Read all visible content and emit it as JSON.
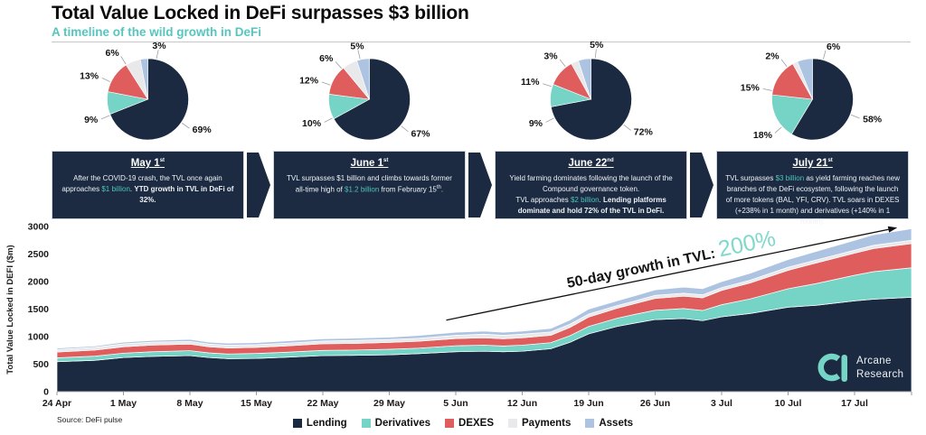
{
  "header": {
    "title": "Total Value Locked in DeFi surpasses $3 billion",
    "subtitle": "A timeline of the wild growth in DeFi"
  },
  "colors": {
    "lending": "#1b2a41",
    "derivatives": "#76d4c7",
    "dexes": "#e05d5e",
    "payments": "#e9e9eb",
    "assets": "#adc3e2",
    "accent_teal": "#57c5bd",
    "annotation_teal": "#7fd8cc"
  },
  "legend": {
    "items": [
      {
        "label": "Lending",
        "color": "#1b2a41"
      },
      {
        "label": "Derivatives",
        "color": "#76d4c7"
      },
      {
        "label": "DEXES",
        "color": "#e05d5e"
      },
      {
        "label": "Payments",
        "color": "#e9e9eb"
      },
      {
        "label": "Assets",
        "color": "#adc3e2"
      }
    ]
  },
  "timeline": [
    {
      "date": "May 1",
      "date_suffix": "st",
      "segments": [
        {
          "t": "After the COVID-19 crash, the TVL once again approaches ",
          "s": "n"
        },
        {
          "t": "$1 billion",
          "s": "teal"
        },
        {
          "t": ". ",
          "s": "n"
        },
        {
          "t": "YTD growth in TVL in DeFi of 32%.",
          "s": "b"
        }
      ]
    },
    {
      "date": "June 1",
      "date_suffix": "st",
      "segments": [
        {
          "t": "TVL surpasses $1 billion and climbs towards former all-time high of ",
          "s": "n"
        },
        {
          "t": "$1.2 billion",
          "s": "teal"
        },
        {
          "t": " from February 15",
          "s": "n"
        },
        {
          "t": "th",
          "s": "sup"
        },
        {
          "t": ".",
          "s": "n"
        }
      ]
    },
    {
      "date": "June 22",
      "date_suffix": "nd",
      "segments": [
        {
          "t": "Yield farming dominates following the launch of the Compound governance token.",
          "s": "n"
        },
        {
          "t": "",
          "s": "br"
        },
        {
          "t": "TVL approaches ",
          "s": "n"
        },
        {
          "t": "$2 billion",
          "s": "teal"
        },
        {
          "t": ".  ",
          "s": "n"
        },
        {
          "t": "Lending platforms dominate and hold 72% of the TVL in DeFi.",
          "s": "b"
        }
      ]
    },
    {
      "date": "July 21",
      "date_suffix": "st",
      "segments": [
        {
          "t": "TVL surpasses ",
          "s": "n"
        },
        {
          "t": "$3 billion",
          "s": "teal"
        },
        {
          "t": " as yield farming reaches new branches of the DeFi ecosystem, following the launch of more tokens (BAL, YFI, CRV). TVL soars in DEXES (+238% in 1 month) and derivatives (+140% in 1 month).",
          "s": "n"
        }
      ]
    }
  ],
  "chart_data": [
    {
      "type": "pie",
      "title": "May 1st",
      "labels": [
        "Lending",
        "Derivatives",
        "DEXES",
        "Payments",
        "Assets"
      ],
      "values": [
        69,
        9,
        13,
        6,
        3
      ],
      "colors": [
        "#1b2a41",
        "#76d4c7",
        "#e05d5e",
        "#e9e9eb",
        "#adc3e2"
      ],
      "label_angles": [
        125,
        247,
        295,
        328,
        12
      ]
    },
    {
      "type": "pie",
      "title": "June 1st",
      "labels": [
        "Lending",
        "Derivatives",
        "DEXES",
        "Payments",
        "Assets"
      ],
      "values": [
        67,
        10,
        12,
        6,
        5
      ],
      "colors": [
        "#1b2a41",
        "#76d4c7",
        "#e05d5e",
        "#e9e9eb",
        "#adc3e2"
      ],
      "label_angles": [
        130,
        243,
        290,
        318,
        347
      ]
    },
    {
      "type": "pie",
      "title": "June 22nd",
      "labels": [
        "Lending",
        "Derivatives",
        "DEXES",
        "Payments",
        "Assets"
      ],
      "values": [
        72,
        9,
        11,
        3,
        5
      ],
      "colors": [
        "#1b2a41",
        "#76d4c7",
        "#e05d5e",
        "#e9e9eb",
        "#adc3e2"
      ],
      "label_angles": [
        128,
        243,
        288,
        322,
        6
      ]
    },
    {
      "type": "pie",
      "title": "July 21st",
      "labels": [
        "Lending",
        "Derivatives",
        "DEXES",
        "Payments",
        "Assets"
      ],
      "values": [
        58,
        18,
        15,
        2,
        6
      ],
      "colors": [
        "#1b2a41",
        "#76d4c7",
        "#e05d5e",
        "#e9e9eb",
        "#adc3e2"
      ],
      "label_angles": [
        112,
        228,
        282,
        322,
        15
      ]
    },
    {
      "type": "area",
      "stacked": true,
      "title": "",
      "xlabel": "",
      "ylabel": "Total Value Locked in DEFI ($m)",
      "ylim": [
        0,
        3000
      ],
      "yticks": [
        0,
        500,
        1000,
        1500,
        2000,
        2500,
        3000
      ],
      "grid": false,
      "legend_position": "bottom",
      "x_unit": "days since 24 Apr",
      "x_max": 90,
      "x_ticks": [
        {
          "day": 0,
          "label": "24 Apr"
        },
        {
          "day": 7,
          "label": "1 May"
        },
        {
          "day": 14,
          "label": "8 May"
        },
        {
          "day": 21,
          "label": "15 May"
        },
        {
          "day": 28,
          "label": "22 May"
        },
        {
          "day": 35,
          "label": "29 May"
        },
        {
          "day": 42,
          "label": "5 Jun"
        },
        {
          "day": 49,
          "label": "12 Jun"
        },
        {
          "day": 56,
          "label": "19 Jun"
        },
        {
          "day": 63,
          "label": "26 Jun"
        },
        {
          "day": 70,
          "label": "3 Jul"
        },
        {
          "day": 77,
          "label": "10 Jul"
        },
        {
          "day": 84,
          "label": "17 Jul"
        }
      ],
      "x": [
        0,
        4,
        7,
        10,
        14,
        16,
        18,
        21,
        24,
        28,
        31,
        35,
        38,
        42,
        45,
        47,
        49,
        52,
        54,
        56,
        59,
        61,
        63,
        66,
        68,
        70,
        73,
        77,
        80,
        84,
        86,
        90
      ],
      "series": [
        {
          "name": "Lending",
          "color": "#1b2a41",
          "values": [
            545,
            570,
            620,
            640,
            655,
            620,
            600,
            605,
            625,
            655,
            660,
            670,
            690,
            725,
            735,
            725,
            735,
            780,
            895,
            1050,
            1185,
            1250,
            1310,
            1330,
            1290,
            1360,
            1420,
            1535,
            1570,
            1650,
            1680,
            1715
          ]
        },
        {
          "name": "Derivatives",
          "color": "#76d4c7",
          "values": [
            70,
            75,
            80,
            85,
            90,
            85,
            85,
            90,
            90,
            95,
            95,
            100,
            100,
            110,
            110,
            105,
            110,
            110,
            120,
            135,
            150,
            160,
            170,
            180,
            185,
            220,
            265,
            335,
            395,
            465,
            500,
            535
          ]
        },
        {
          "name": "DEXES",
          "color": "#e05d5e",
          "values": [
            105,
            110,
            115,
            120,
            120,
            110,
            110,
            110,
            115,
            120,
            120,
            125,
            125,
            130,
            135,
            130,
            135,
            135,
            150,
            170,
            180,
            195,
            215,
            225,
            230,
            260,
            290,
            335,
            375,
            400,
            420,
            440
          ]
        },
        {
          "name": "Payments",
          "color": "#e9e9eb",
          "values": [
            45,
            50,
            55,
            55,
            50,
            50,
            50,
            50,
            50,
            50,
            55,
            55,
            55,
            60,
            65,
            65,
            65,
            60,
            60,
            55,
            50,
            50,
            55,
            55,
            55,
            50,
            50,
            55,
            55,
            55,
            60,
            60
          ]
        },
        {
          "name": "Assets",
          "color": "#adc3e2",
          "values": [
            25,
            25,
            30,
            30,
            35,
            35,
            35,
            35,
            40,
            40,
            40,
            40,
            50,
            55,
            55,
            55,
            55,
            65,
            75,
            90,
            85,
            95,
            100,
            110,
            110,
            110,
            125,
            140,
            155,
            180,
            190,
            210
          ]
        }
      ],
      "annotation": {
        "prefix": "50-day growth in TVL: ",
        "highlight": "200%",
        "from_day": 41,
        "from_value": 1300,
        "to_day": 88.5,
        "to_value": 2980
      }
    }
  ],
  "source": {
    "label": "Source: DeFi pulse"
  },
  "logo": {
    "line1": "Arcane",
    "line2": "Research"
  }
}
